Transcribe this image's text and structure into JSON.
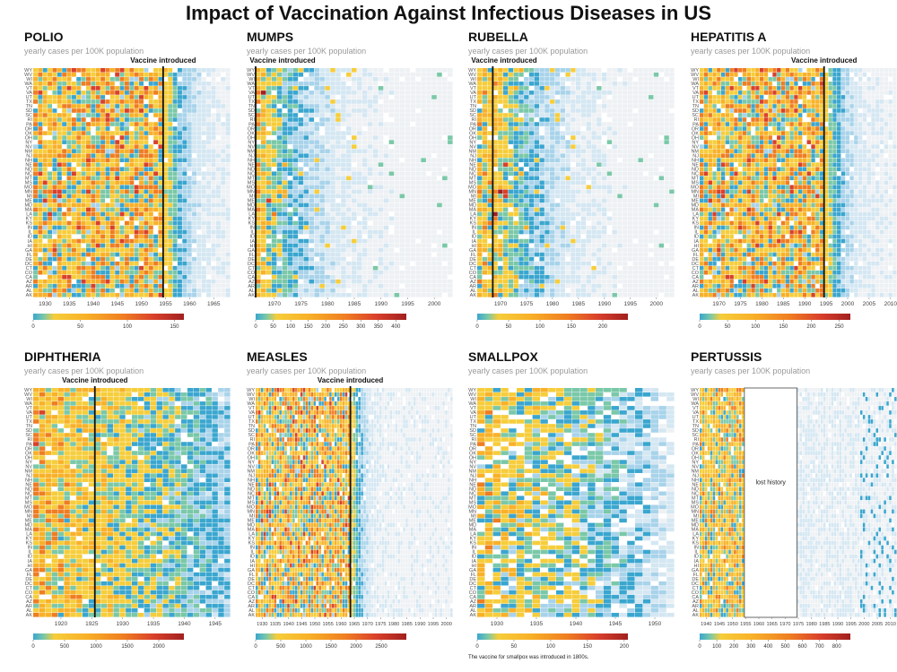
{
  "title": "Impact of Vaccination Against Infectious Diseases in US",
  "subtitle": "yearly cases per 100K population",
  "vaccine_label": "Vaccine introduced",
  "lost_history_label": "lost history",
  "smallpox_note": "The vaccine for smallpox was introduced in 1800s.",
  "states": [
    "WY",
    "WV",
    "WI",
    "WA",
    "VT",
    "VA",
    "UT",
    "TX",
    "TN",
    "SD",
    "SC",
    "RI",
    "PA",
    "OR",
    "OK",
    "OH",
    "NY",
    "NV",
    "NM",
    "NJ",
    "NH",
    "NE",
    "ND",
    "NC",
    "MT",
    "MS",
    "MO",
    "MN",
    "MI",
    "ME",
    "MD",
    "MA",
    "LA",
    "KY",
    "KS",
    "IN",
    "IL",
    "ID",
    "IA",
    "HI",
    "GA",
    "FL",
    "DE",
    "DC",
    "CT",
    "CO",
    "CA",
    "AZ",
    "AR",
    "AL",
    "AK"
  ],
  "colorscale": [
    "#3aa6cf",
    "#7ac8a8",
    "#f6cd3b",
    "#f8b128",
    "#ef7d22",
    "#d9402b",
    "#a2201f"
  ],
  "chart_data": [
    {
      "type": "heatmap",
      "title": "POLIO",
      "ylabel": "yearly cases per 100K population",
      "x_range": [
        1928,
        1968
      ],
      "x_ticks": [
        1930,
        1935,
        1940,
        1945,
        1950,
        1955,
        1960,
        1965
      ],
      "vaccine_year": 1955,
      "legend_ticks": [
        0,
        50,
        100,
        150
      ],
      "legend_max": 160,
      "profile": "high_then_drop"
    },
    {
      "type": "heatmap",
      "title": "MUMPS",
      "ylabel": "yearly cases per 100K population",
      "x_range": [
        1967,
        2003
      ],
      "x_ticks": [
        1970,
        1975,
        1980,
        1985,
        1990,
        1995,
        2000
      ],
      "vaccine_year": 1967,
      "legend_ticks": [
        0,
        50,
        100,
        150,
        200,
        250,
        300,
        350,
        400
      ],
      "legend_max": 430,
      "profile": "decay_after"
    },
    {
      "type": "heatmap",
      "title": "RUBELLA",
      "ylabel": "yearly cases per 100K population",
      "x_range": [
        1966,
        2003
      ],
      "x_ticks": [
        1970,
        1975,
        1980,
        1985,
        1990,
        1995,
        2000
      ],
      "vaccine_year": 1969,
      "legend_ticks": [
        0,
        50,
        100,
        150,
        200
      ],
      "legend_max": 240,
      "profile": "decay_after"
    },
    {
      "type": "heatmap",
      "title": "HEPATITIS A",
      "ylabel": "yearly cases per 100K population",
      "x_range": [
        1966,
        2011
      ],
      "x_ticks": [
        1970,
        1975,
        1980,
        1985,
        1990,
        1995,
        2000,
        2005,
        2010
      ],
      "vaccine_year": 1995,
      "legend_ticks": [
        0,
        50,
        100,
        150,
        200,
        250
      ],
      "legend_max": 270,
      "profile": "high_then_drop"
    },
    {
      "type": "heatmap",
      "title": "DIPHTHERIA",
      "ylabel": "yearly cases per 100K population",
      "x_range": [
        1916,
        1947
      ],
      "x_ticks": [
        1920,
        1925,
        1930,
        1935,
        1940,
        1945
      ],
      "vaccine_year": 1926,
      "legend_ticks": [
        0,
        500,
        1000,
        1500,
        2000
      ],
      "legend_max": 2400,
      "profile": "slow_decline"
    },
    {
      "type": "heatmap",
      "title": "MEASLES",
      "ylabel": "yearly cases per 100K population",
      "x_range": [
        1928,
        2002
      ],
      "x_ticks": [
        1930,
        1935,
        1940,
        1945,
        1950,
        1955,
        1960,
        1965,
        1970,
        1975,
        1980,
        1985,
        1990,
        1995,
        2000
      ],
      "vaccine_year": 1964,
      "legend_ticks": [
        0,
        500,
        1000,
        1500,
        2000,
        2500
      ],
      "legend_max": 3000,
      "profile": "high_then_drop"
    },
    {
      "type": "heatmap",
      "title": "SMALLPOX",
      "ylabel": "yearly cases per 100K population",
      "x_range": [
        1928,
        1952
      ],
      "x_ticks": [
        1930,
        1935,
        1940,
        1945,
        1950
      ],
      "vaccine_year": null,
      "legend_ticks": [
        0,
        50,
        100,
        150,
        200
      ],
      "legend_max": 205,
      "profile": "smallpox"
    },
    {
      "type": "heatmap",
      "title": "PERTUSSIS",
      "ylabel": "yearly cases per 100K population",
      "x_range": [
        1938,
        2012
      ],
      "x_ticks": [
        1940,
        1945,
        1950,
        1955,
        1960,
        1965,
        1970,
        1975,
        1980,
        1985,
        1990,
        1995,
        2000,
        2005,
        2010
      ],
      "vaccine_year": null,
      "lost_history": [
        1955,
        1974
      ],
      "legend_ticks": [
        0,
        100,
        200,
        300,
        400,
        500,
        600,
        700,
        800
      ],
      "legend_max": 880,
      "profile": "pertussis"
    }
  ]
}
